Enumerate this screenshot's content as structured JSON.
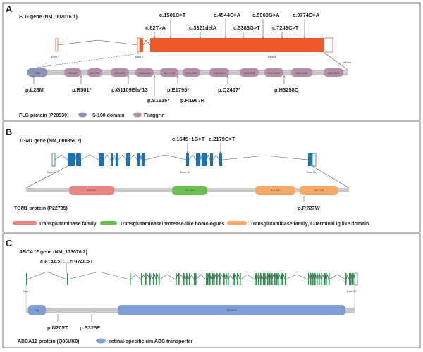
{
  "panelA": {
    "letter": "A",
    "gene_italic": "FLG",
    "gene_rest": " gene (NM_002016.1)",
    "exons": [
      "Exon 1",
      "Exon 2",
      "Exon 3"
    ],
    "length": "4061aa",
    "cdna": [
      "c.82T>A",
      "c.1501C>T",
      "c.3321delA",
      "c.4544C>A",
      "c.5383G>T",
      "c.5960G>A",
      "c.7249C>T",
      "c.9774C>A"
    ],
    "s100": "2-88",
    "filaggrin": [
      "273-428",
      "697-763",
      "1022-1077",
      "1346-1401",
      "1677-1725",
      "1994-2050",
      "2319-2374",
      "2643-2696",
      "2967-3022",
      "3291-3346",
      "3615-3670"
    ],
    "protein_muts": [
      "p.L28M",
      "p.R501*",
      "p.G1109Efs*13",
      "p.S1515*",
      "p.E1795*",
      "p.R1987H",
      "p.Q2417*",
      "p.H3258Q"
    ],
    "protein_label": "FLG protein (P20930)",
    "legend": [
      "S-100 domain",
      "Filaggrin"
    ],
    "colors": {
      "exon": "#f05a28",
      "s100": "#8a93b8",
      "filaggrin": "#b58fa8",
      "bar": "#c8c8c8"
    }
  },
  "panelB": {
    "letter": "B",
    "gene_italic": "TGM1",
    "gene_rest": " gene (NM_000359.2)",
    "exons": [
      "Exon 1",
      "Exon 10",
      "Exon 15"
    ],
    "cdna": [
      "c.1645+1G>T",
      "c.2179C>T"
    ],
    "domains": [
      "115-227",
      "371-462",
      "575-683",
      "691-768"
    ],
    "protein_muts": [
      "p.R727W"
    ],
    "protein_label": "TGM1 protein (P22735)",
    "legend": [
      "Transglutaminase family",
      "Transglutaminase/protease-like homologues",
      "Transglutaminase family, C-terminal ig like domain"
    ],
    "colors": {
      "exon": "#1a72b9",
      "red": "#e88585",
      "green": "#6cbf4e",
      "orange": "#f6aa6a"
    }
  },
  "panelC": {
    "letter": "C",
    "gene_italic": "ABCA12",
    "gene_rest": " gene (NM_173076.2)",
    "exons": [
      "Exon 1",
      "Exon 53"
    ],
    "cdna": [
      "c.614A>C",
      "c.974C>T"
    ],
    "domains": [
      "7-86",
      "752-2576"
    ],
    "protein_muts": [
      "p.N205T",
      "p.S325F"
    ],
    "protein_label": "ABCA12 protein (Q86UK0)",
    "legend": [
      "retinal-specific rim ABC transporter"
    ],
    "colors": {
      "exon": "#1e9a4a",
      "domain": "#7f9fd6"
    }
  }
}
